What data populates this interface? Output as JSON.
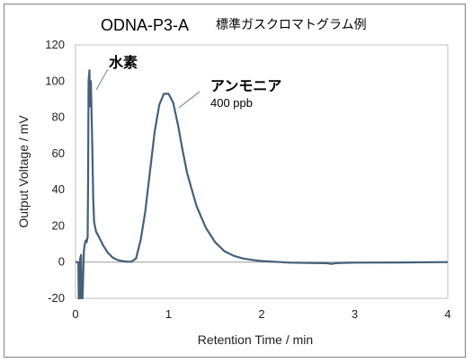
{
  "chart_data": {
    "type": "line",
    "title": "ODNA-P3-A",
    "subtitle": "標準ガスクロマトグラム例",
    "xlabel": "Retention Time / min",
    "ylabel": "Output Voltage / mV",
    "xlim": [
      0,
      4
    ],
    "ylim": [
      -20,
      120
    ],
    "x_ticks": [
      "0",
      "1",
      "2",
      "3",
      "4"
    ],
    "y_ticks": [
      "-20",
      "0",
      "20",
      "40",
      "60",
      "80",
      "100",
      "120"
    ],
    "grid": false,
    "line_color": "#44607a",
    "series": [
      {
        "x": [
          0.0,
          0.03,
          0.035,
          0.045,
          0.05,
          0.06,
          0.065,
          0.075,
          0.09,
          0.1,
          0.11,
          0.12,
          0.13,
          0.135,
          0.14,
          0.15,
          0.155,
          0.16,
          0.165,
          0.17,
          0.18,
          0.19,
          0.2,
          0.22,
          0.25,
          0.3,
          0.35,
          0.4,
          0.45,
          0.5,
          0.55,
          0.6,
          0.65,
          0.7,
          0.75,
          0.8,
          0.85,
          0.9,
          0.95,
          1.0,
          1.05,
          1.1,
          1.15,
          1.2,
          1.3,
          1.4,
          1.5,
          1.6,
          1.7,
          1.8,
          1.9,
          2.0,
          2.1,
          2.2,
          2.3,
          2.5,
          2.7,
          2.75,
          2.8,
          2.9,
          3.0,
          3.5,
          4.0
        ],
        "y": [
          0,
          0,
          -20,
          -20,
          2,
          4,
          -20,
          -20,
          6,
          10,
          12,
          11,
          14,
          45,
          100,
          106,
          90,
          86,
          100,
          88,
          65,
          35,
          22,
          17,
          14,
          9,
          5,
          2.5,
          1.2,
          0.6,
          0.3,
          0.2,
          2,
          12,
          28,
          50,
          72,
          87,
          93,
          93,
          88,
          76,
          62,
          49,
          31,
          19,
          11,
          6,
          3.5,
          2,
          1.2,
          0.6,
          0.3,
          0,
          -0.3,
          -0.5,
          -0.6,
          -1,
          -0.6,
          -0.4,
          -0.3,
          -0.2,
          0
        ]
      }
    ],
    "annotations": [
      {
        "text": "水素"
      },
      {
        "text": "アンモニア"
      },
      {
        "text": "400 ppb"
      }
    ]
  }
}
